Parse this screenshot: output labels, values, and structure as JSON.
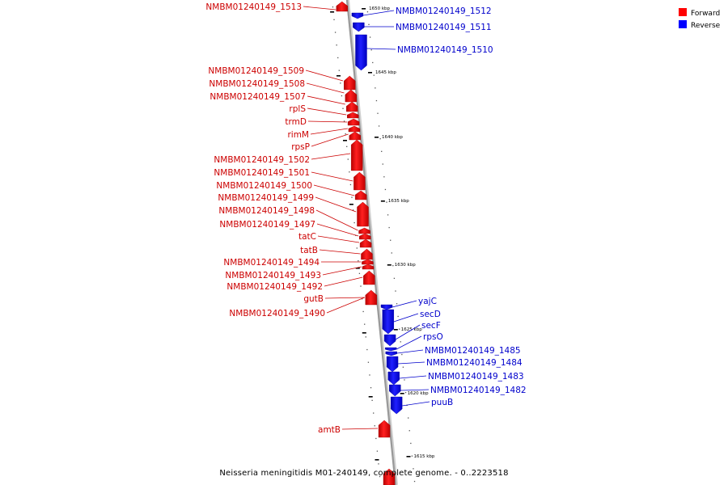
{
  "caption": "Neisseria meningitidis M01-240149, complete genome. - 0..2223518",
  "legend": {
    "forward": {
      "label": "Forward",
      "color": "#ff0000"
    },
    "reverse": {
      "label": "Reverse",
      "color": "#0000ff"
    }
  },
  "colors": {
    "forward_label": "#cc0000",
    "reverse_label": "#0000cc",
    "backbone": "#999999"
  },
  "scale_ticks": [
    "1650 kbp",
    "1645 kbp",
    "1640 kbp",
    "1635 kbp",
    "1630 kbp",
    "1625 kbp",
    "1620 kbp",
    "1615 kbp"
  ],
  "forward_genes": [
    "NMBM01240149_1513",
    "NMBM01240149_1509",
    "NMBM01240149_1508",
    "NMBM01240149_1507",
    "rplS",
    "trmD",
    "rimM",
    "rpsP",
    "NMBM01240149_1502",
    "NMBM01240149_1501",
    "NMBM01240149_1500",
    "NMBM01240149_1499",
    "NMBM01240149_1498",
    "NMBM01240149_1497",
    "tatC",
    "tatB",
    "NMBM01240149_1494",
    "NMBM01240149_1493",
    "NMBM01240149_1492",
    "gutB",
    "NMBM01240149_1490",
    "amtB"
  ],
  "reverse_genes": [
    "NMBM01240149_1512",
    "NMBM01240149_1511",
    "NMBM01240149_1510",
    "yajC",
    "secD",
    "secF",
    "rpsO",
    "NMBM01240149_1485",
    "NMBM01240149_1484",
    "NMBM01240149_1483",
    "NMBM01240149_1482",
    "puuB"
  ]
}
